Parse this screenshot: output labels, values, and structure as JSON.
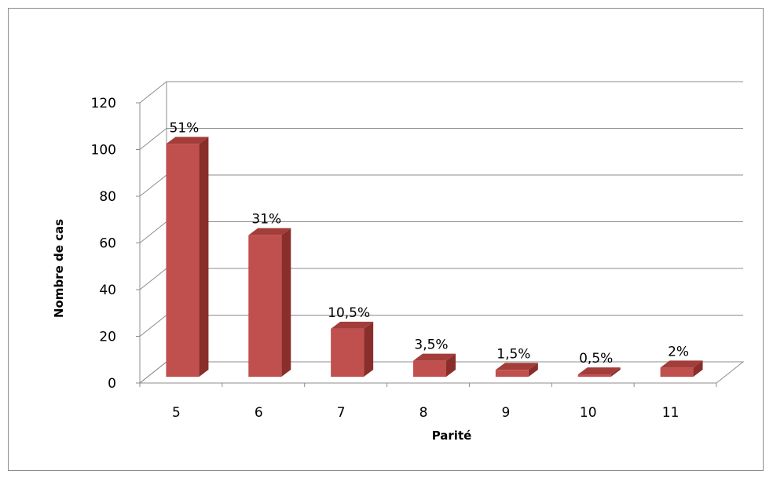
{
  "chart_data": {
    "type": "bar",
    "style": "3d-column",
    "categories": [
      "5",
      "6",
      "7",
      "8",
      "9",
      "10",
      "11"
    ],
    "series": [
      {
        "values": [
          102,
          62,
          21,
          7,
          3,
          1,
          4
        ],
        "labels": [
          "51%",
          "31%",
          "10,5%",
          "3,5%",
          "1,5%",
          "0,5%",
          "2%"
        ],
        "color": "#c0504d"
      }
    ],
    "title": "",
    "xlabel": "Parité",
    "ylabel": "Nombre de cas",
    "ylim": [
      0,
      120
    ],
    "yticks": [
      0,
      20,
      40,
      60,
      80,
      100,
      120
    ],
    "grid": true,
    "legend": "none"
  }
}
